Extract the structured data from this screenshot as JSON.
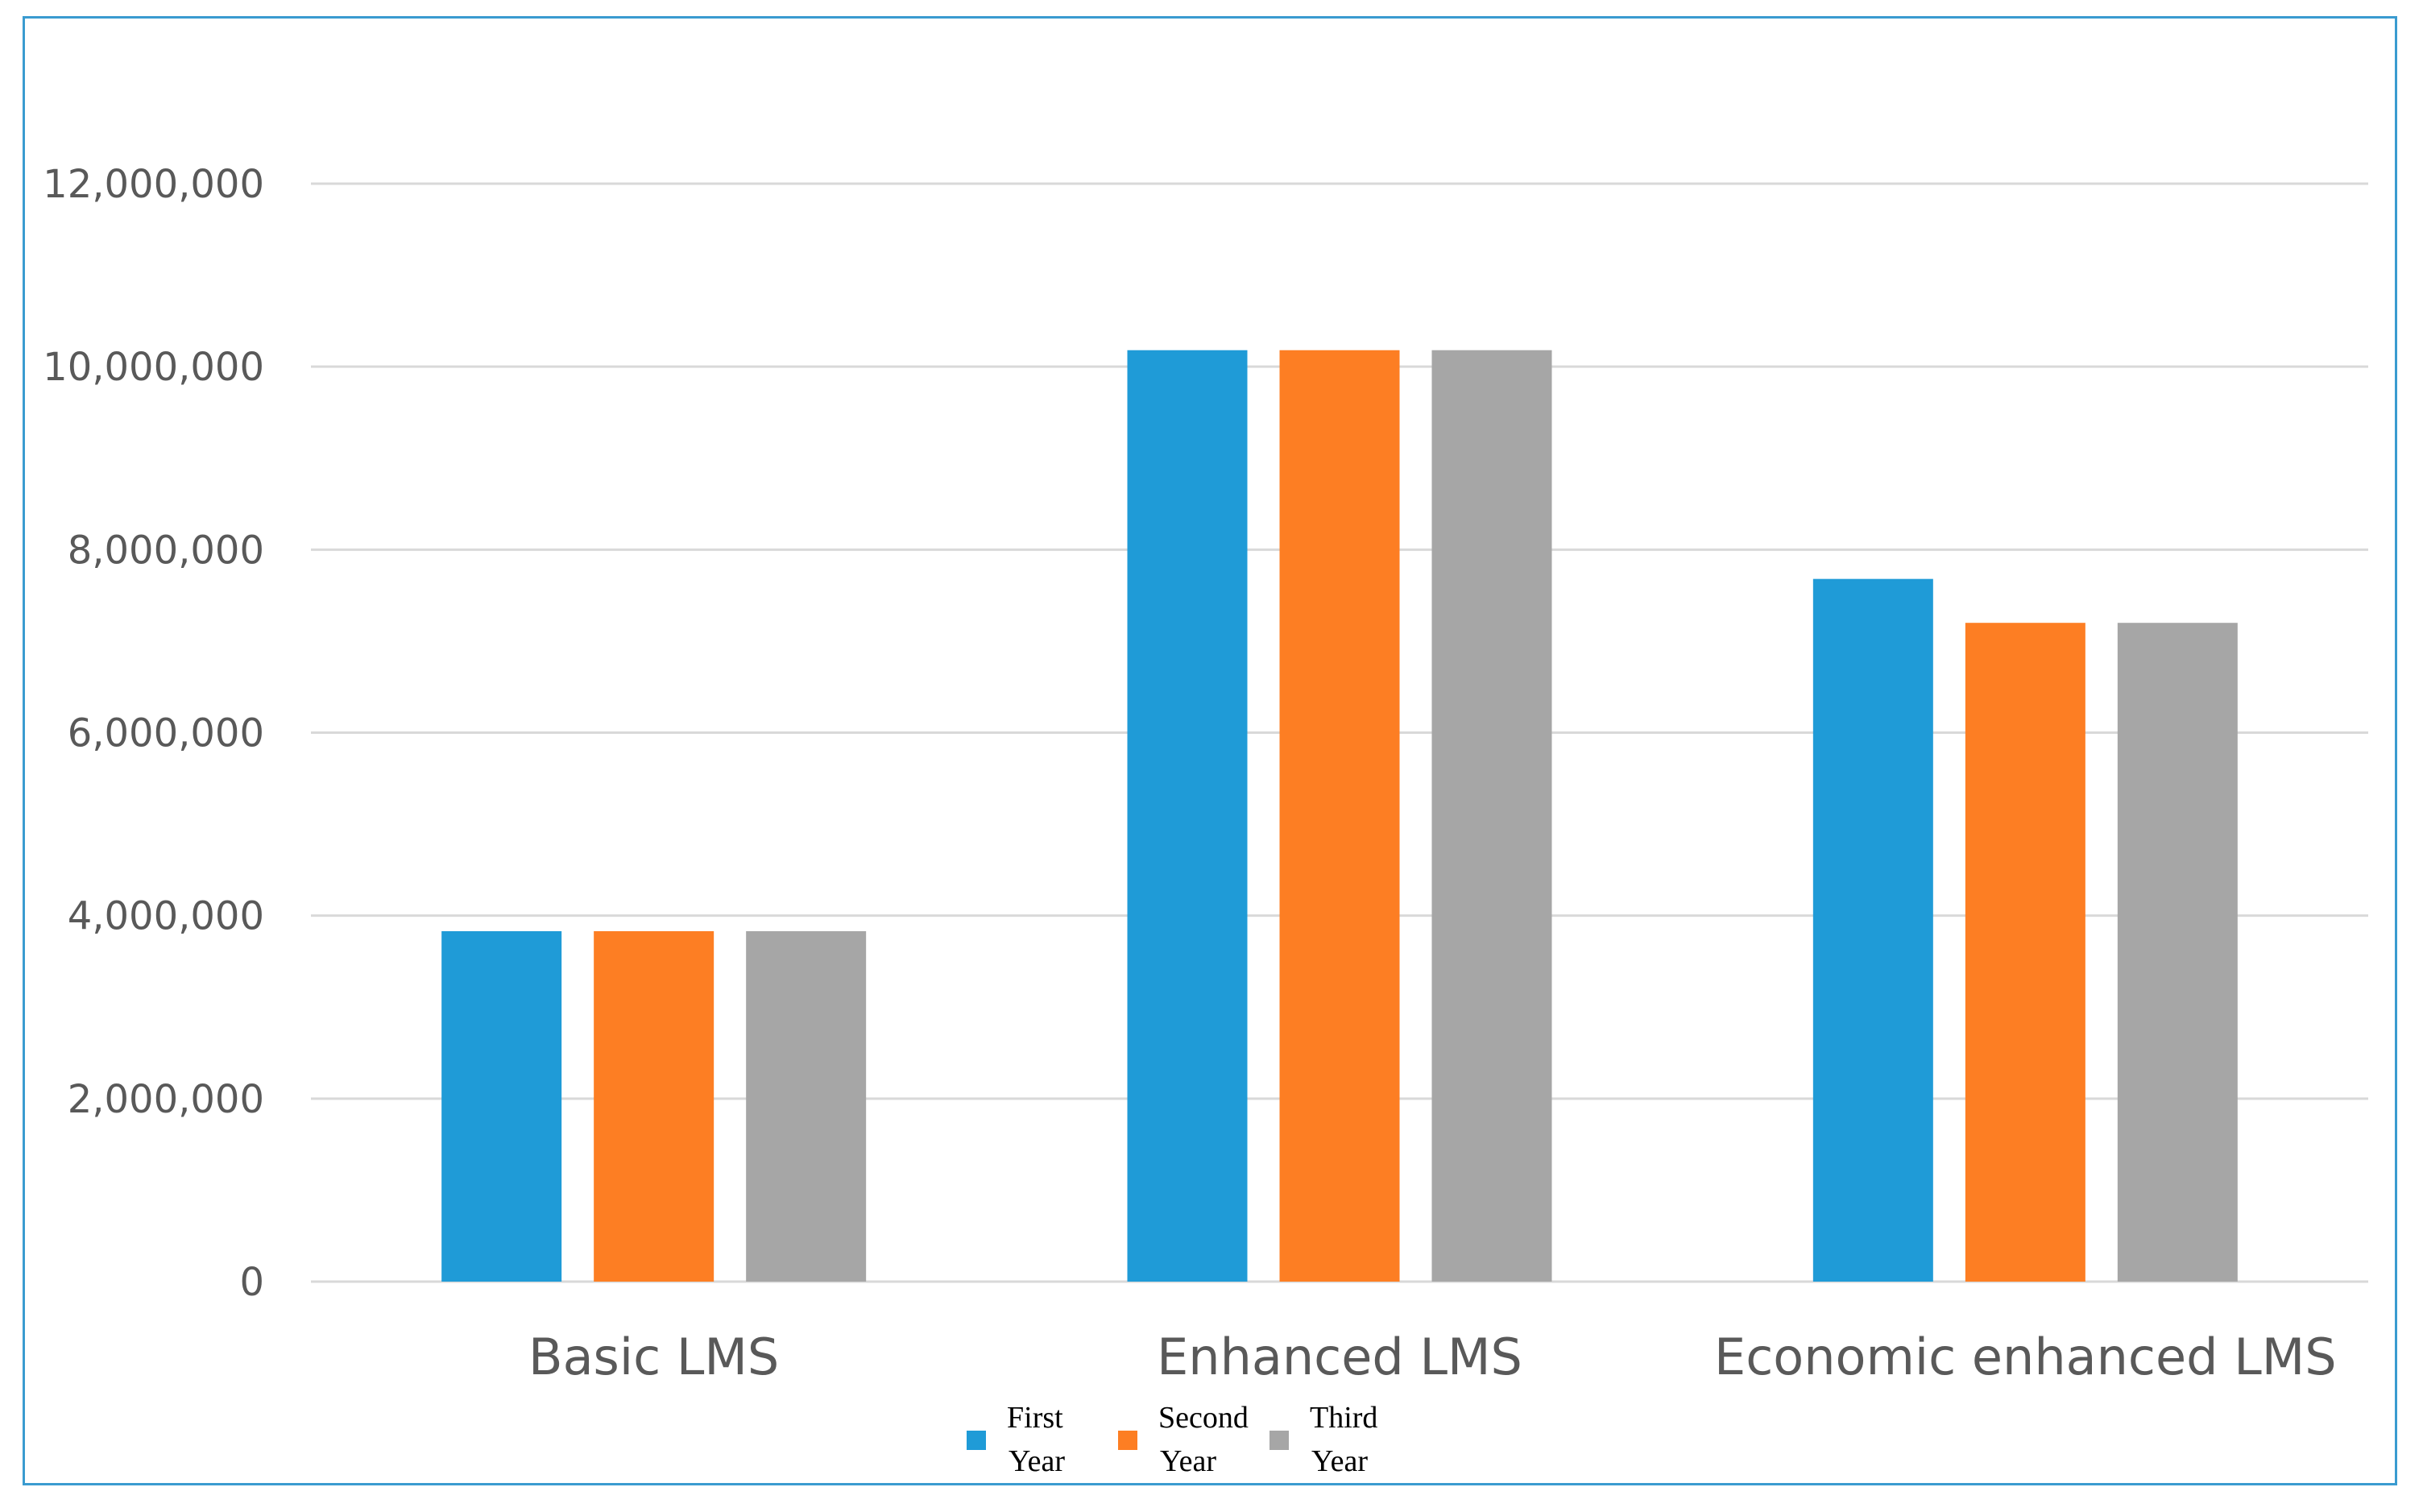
{
  "chart_data": {
    "type": "bar",
    "title": "",
    "xlabel": "",
    "ylabel": "",
    "categories": [
      "Basic LMS",
      "Enhanced LMS",
      "Economic enhanced LMS"
    ],
    "series": [
      {
        "name": "First Year",
        "values": [
          3830000,
          10180000,
          7680000
        ],
        "color": "#1f9bd7"
      },
      {
        "name": "Second Year",
        "values": [
          3830000,
          10180000,
          7200000
        ],
        "color": "#fd7e23"
      },
      {
        "name": "Third Year",
        "values": [
          3830000,
          10180000,
          7200000
        ],
        "color": "#a6a6a6"
      }
    ],
    "ylim": [
      0,
      12000000
    ],
    "yticks": [
      0,
      2000000,
      4000000,
      6000000,
      8000000,
      10000000,
      12000000
    ],
    "ytick_labels": [
      "0",
      "2,000,000",
      "4,000,000",
      "6,000,000",
      "8,000,000",
      "10,000,000",
      "12,000,000"
    ],
    "grid": true,
    "legend": {
      "position": "bottom-center",
      "entries": [
        {
          "line1": "First",
          "line2": "Year"
        },
        {
          "line1": "Second",
          "line2": "Year"
        },
        {
          "line1": "Third",
          "line2": "Year"
        }
      ]
    },
    "colors": {
      "frame": "#3a9bd0",
      "grid": "#d9d9d9",
      "tick_text": "#595959"
    }
  }
}
